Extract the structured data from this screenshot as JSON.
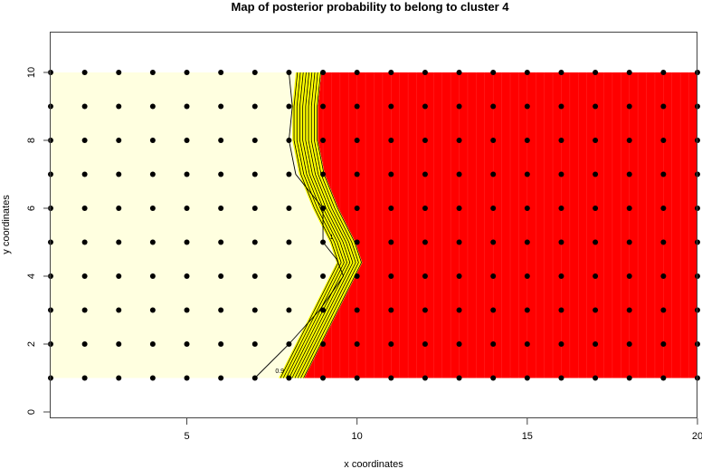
{
  "chart_data": {
    "type": "heatmap",
    "title": "Map of posterior probability to belong to cluster  4",
    "xlabel": "x coordinates",
    "ylabel": "y coordinates",
    "xlim": [
      1,
      20
    ],
    "ylim": [
      0,
      11
    ],
    "xticks": [
      "5",
      "10",
      "15",
      "20"
    ],
    "yticks": [
      "0",
      "2",
      "4",
      "6",
      "8",
      "10"
    ],
    "grid": false,
    "points": {
      "x_values": [
        1,
        2,
        3,
        4,
        5,
        6,
        7,
        8,
        9,
        10,
        11,
        12,
        13,
        14,
        15,
        16,
        17,
        18,
        19,
        20
      ],
      "y_values": [
        1,
        2,
        3,
        4,
        5,
        6,
        7,
        8,
        9,
        10
      ]
    },
    "boundary": {
      "y": [
        1,
        2,
        3,
        4,
        4.4,
        5,
        6,
        7,
        8,
        9,
        10
      ],
      "x": [
        8.3,
        8.8,
        9.3,
        9.8,
        10.0,
        9.8,
        9.3,
        8.9,
        8.7,
        8.7,
        8.8
      ]
    },
    "outer_contour": {
      "y": [
        1,
        2,
        3,
        4,
        4.5,
        5,
        5.5,
        6,
        7,
        8,
        9,
        10
      ],
      "x": [
        7.0,
        8.0,
        8.9,
        9.6,
        9.4,
        9.0,
        9.0,
        9.0,
        8.2,
        8.0,
        8.1,
        8.0
      ]
    },
    "contour_labels": [
      "1",
      "0.9"
    ],
    "colors": {
      "low": "#FFFFE0",
      "high": "#FF0000",
      "band": "#FFFF00",
      "contour": "#000000"
    }
  }
}
